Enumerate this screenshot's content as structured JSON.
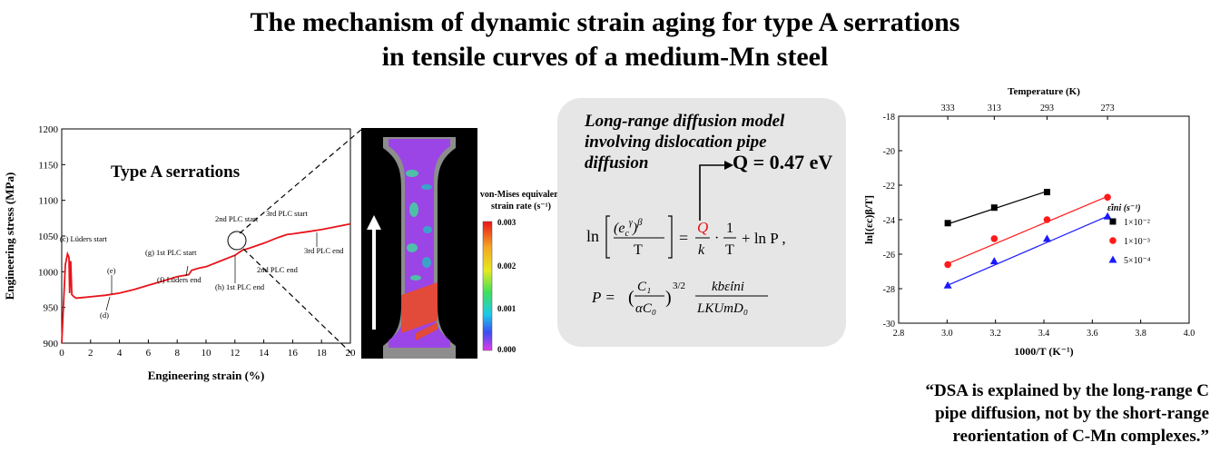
{
  "title": {
    "line1": "The mechanism of dynamic strain aging for type A serrations",
    "line2": "in tensile curves of a medium-Mn steel"
  },
  "left_chart": {
    "inner_title": "Type A serrations",
    "annotations": [
      "(c) Lüders start",
      "(e)",
      "(d)",
      "(g) 1st PLC start",
      "(f) Lüders end",
      "(h) 1st PLC end",
      "2nd PLC start",
      "2nd PLC end",
      "3rd PLC start",
      "3rd PLC end"
    ]
  },
  "colorbar": {
    "title_line1": "von-Mises equivalent",
    "title_line2": "strain rate (s⁻¹)",
    "ticks": [
      "0.003",
      "0.002",
      "0.001",
      "0.000"
    ]
  },
  "model": {
    "title_line1": "Long-range diffusion model",
    "title_line2": "involving dislocation pipe",
    "title_line3": "diffusion",
    "eq1_ln": "ln",
    "eq1_T": "T",
    "eq1_Q": "Q",
    "eq1_k": "k",
    "eq1_one": "1",
    "eq1_rhs_T": "T",
    "eq1_tail": "+ ln P ,",
    "eq2_lhs": "P =",
    "eq2_C1": "C₁",
    "eq2_aC0": "αC₀",
    "eq2_exp": "3/2",
    "eq2_num": "kbε̇ini",
    "eq2_den": "LKUmD₀"
  },
  "q_result": "Q = 0.47 eV",
  "quote": {
    "line1": "“DSA is explained by the long-range C",
    "line2": "pipe diffusion, not by the short-range",
    "line3": "reorientation of C-Mn complexes.”"
  },
  "chart_data": [
    {
      "type": "line",
      "xlabel": "Engineering strain (%)",
      "ylabel": "Engineering stress (MPa)",
      "xlim": [
        0,
        20
      ],
      "ylim": [
        900,
        1200
      ],
      "x_ticks": [
        0,
        2,
        4,
        6,
        8,
        10,
        12,
        14,
        16,
        18,
        20
      ],
      "y_ticks": [
        900,
        950,
        1000,
        1050,
        1100,
        1150,
        1200
      ],
      "series": [
        {
          "color": "#e8141b",
          "x": [
            0,
            0.25,
            0.4,
            0.5,
            0.55,
            0.62,
            0.7,
            0.85,
            1.0,
            1.5,
            2.0,
            3.0,
            4.0,
            5.0,
            6.0,
            7.0,
            8.0,
            8.8,
            9.0,
            9.5,
            10.0,
            11.0,
            12.0,
            12.5,
            13.0,
            14.0,
            15.0,
            15.6,
            16.0,
            17.0,
            18.0,
            19.0,
            20.0
          ],
          "y": [
            900,
            1010,
            1025,
            1020,
            970,
            1015,
            968,
            965,
            963,
            964,
            965,
            967,
            970,
            975,
            981,
            987,
            993,
            996,
            1002,
            1005,
            1007,
            1015,
            1023,
            1030,
            1033,
            1040,
            1048,
            1052,
            1053,
            1056,
            1059,
            1063,
            1067
          ]
        }
      ]
    },
    {
      "type": "scatter",
      "xlabel": "1000/T (K⁻¹)",
      "ylabel": "ln[(εc)β/T]",
      "top_label": "Temperature (K)",
      "xlim": [
        2.8,
        4.0
      ],
      "ylim": [
        -30,
        -18
      ],
      "x_ticks": [
        2.8,
        3.0,
        3.2,
        3.4,
        3.6,
        3.8,
        4.0
      ],
      "y_ticks": [
        -30,
        -28,
        -26,
        -24,
        -22,
        -20,
        -18
      ],
      "top_ticks": [
        "333",
        "313",
        "293",
        "273"
      ],
      "top_tick_positions": [
        3.003,
        3.195,
        3.413,
        3.663
      ],
      "legend_title": "ε̇ini (s⁻¹)",
      "legend_position": "right",
      "series": [
        {
          "name": "1×10⁻²",
          "color": "#000000",
          "marker": "square",
          "x": [
            3.003,
            3.195,
            3.413
          ],
          "y": [
            -24.2,
            -23.3,
            -22.4
          ],
          "fit": [
            -24.25,
            -22.35
          ]
        },
        {
          "name": "1×10⁻³",
          "color": "#ff1a1a",
          "marker": "circle",
          "x": [
            3.003,
            3.195,
            3.413,
            3.663
          ],
          "y": [
            -26.6,
            -25.1,
            -24.0,
            -22.7
          ],
          "fit": [
            -26.55,
            -22.65
          ]
        },
        {
          "name": "5×10⁻⁴",
          "color": "#1a1aff",
          "marker": "triangle",
          "x": [
            3.003,
            3.195,
            3.413,
            3.663
          ],
          "y": [
            -27.8,
            -26.4,
            -25.1,
            -23.8
          ],
          "fit": [
            -27.8,
            -23.8
          ]
        }
      ]
    }
  ]
}
